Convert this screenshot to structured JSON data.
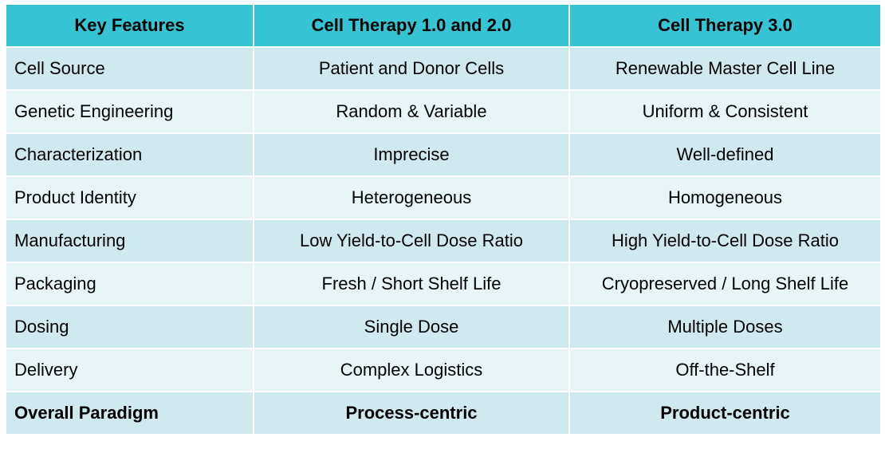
{
  "table": {
    "headers": [
      "Key Features",
      "Cell Therapy 1.0 and 2.0",
      "Cell Therapy 3.0"
    ],
    "rows": [
      [
        "Cell Source",
        "Patient and Donor Cells",
        "Renewable Master Cell Line"
      ],
      [
        "Genetic Engineering",
        "Random & Variable",
        "Uniform & Consistent"
      ],
      [
        "Characterization",
        "Imprecise",
        "Well-defined"
      ],
      [
        "Product Identity",
        "Heterogeneous",
        "Homogeneous"
      ],
      [
        "Manufacturing",
        "Low Yield-to-Cell Dose Ratio",
        "High Yield-to-Cell Dose Ratio"
      ],
      [
        "Packaging",
        "Fresh / Short Shelf Life",
        "Cryopreserved / Long Shelf Life"
      ],
      [
        "Dosing",
        "Single Dose",
        "Multiple Doses"
      ],
      [
        "Delivery",
        "Complex Logistics",
        "Off-the-Shelf"
      ],
      [
        "Overall Paradigm",
        "Process-centric",
        "Product-centric"
      ]
    ]
  },
  "colors": {
    "header_bg": "#34c4d4",
    "row_dark": "#cfeaee",
    "row_light": "#e8f5f7"
  }
}
